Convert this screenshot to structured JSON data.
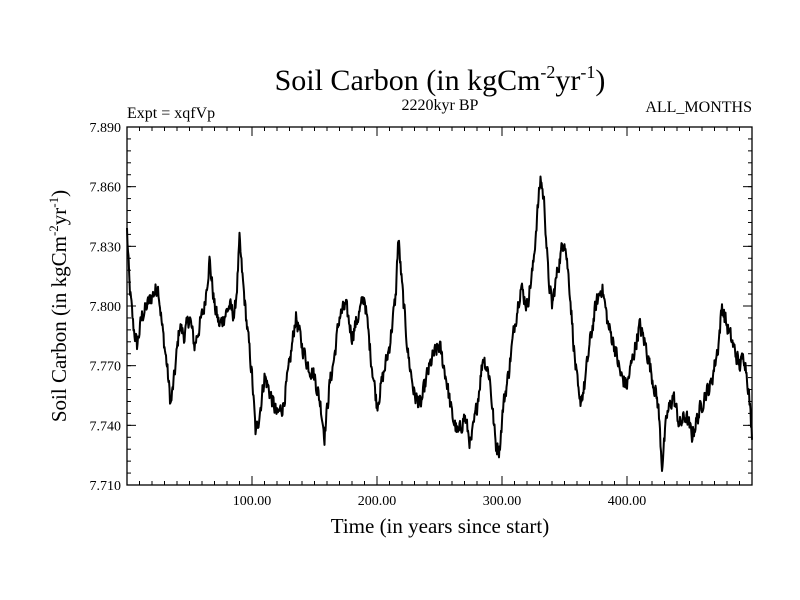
{
  "chart_data": {
    "type": "line",
    "title": {
      "main": "Soil Carbon (in kgCm",
      "sup1": "-2",
      "mid": "yr",
      "sup2": "-1",
      "end": ")"
    },
    "subtitle": "2220kyr BP",
    "left_label": "Expt = xqfVp",
    "right_label": "ALL_MONTHS",
    "xlabel": "Time (in years since start)",
    "ylabel": {
      "main": "Soil Carbon (in kgCm",
      "sup1": "-2",
      "mid": "yr",
      "sup2": "-1",
      "end": ")"
    },
    "xlim": [
      0,
      500
    ],
    "ylim": [
      7.71,
      7.89
    ],
    "xticks": [
      100,
      200,
      300,
      400
    ],
    "xtick_labels": [
      "100.00",
      "200.00",
      "300.00",
      "400.00"
    ],
    "yticks": [
      7.71,
      7.74,
      7.77,
      7.8,
      7.83,
      7.86,
      7.89
    ],
    "ytick_labels": [
      "7.710",
      "7.740",
      "7.770",
      "7.800",
      "7.830",
      "7.860",
      "7.890"
    ],
    "series": [
      {
        "name": "Soil Carbon",
        "anchors_x": [
          0,
          2,
          5,
          8,
          12,
          16,
          20,
          25,
          28,
          32,
          35,
          38,
          42,
          46,
          50,
          54,
          58,
          62,
          66,
          70,
          74,
          78,
          82,
          86,
          88,
          90,
          93,
          96,
          100,
          103,
          107,
          110,
          115,
          120,
          125,
          130,
          135,
          140,
          145,
          150,
          155,
          158,
          162,
          166,
          170,
          175,
          180,
          185,
          190,
          195,
          200,
          205,
          210,
          215,
          217,
          220,
          225,
          230,
          235,
          240,
          245,
          250,
          255,
          260,
          265,
          270,
          275,
          280,
          285,
          290,
          295,
          298,
          301,
          305,
          310,
          315,
          320,
          325,
          328,
          331,
          334,
          337,
          340,
          345,
          350,
          354,
          358,
          362,
          366,
          370,
          375,
          380,
          385,
          390,
          395,
          400,
          405,
          410,
          415,
          420,
          425,
          428,
          432,
          437,
          442,
          447,
          452,
          457,
          462,
          467,
          470,
          473,
          476,
          480,
          485,
          490,
          494,
          497,
          500
        ],
        "anchors_y": [
          7.838,
          7.81,
          7.79,
          7.78,
          7.795,
          7.8,
          7.805,
          7.81,
          7.79,
          7.77,
          7.75,
          7.765,
          7.79,
          7.785,
          7.795,
          7.78,
          7.79,
          7.8,
          7.823,
          7.8,
          7.79,
          7.795,
          7.8,
          7.795,
          7.81,
          7.832,
          7.81,
          7.79,
          7.765,
          7.735,
          7.75,
          7.765,
          7.755,
          7.745,
          7.75,
          7.77,
          7.795,
          7.78,
          7.77,
          7.765,
          7.75,
          7.735,
          7.76,
          7.775,
          7.795,
          7.8,
          7.785,
          7.795,
          7.805,
          7.775,
          7.75,
          7.765,
          7.78,
          7.805,
          7.835,
          7.81,
          7.775,
          7.755,
          7.75,
          7.765,
          7.775,
          7.78,
          7.765,
          7.745,
          7.735,
          7.745,
          7.73,
          7.75,
          7.775,
          7.765,
          7.73,
          7.728,
          7.75,
          7.765,
          7.79,
          7.81,
          7.8,
          7.82,
          7.845,
          7.865,
          7.85,
          7.815,
          7.8,
          7.82,
          7.835,
          7.81,
          7.775,
          7.75,
          7.76,
          7.78,
          7.8,
          7.81,
          7.79,
          7.78,
          7.765,
          7.76,
          7.775,
          7.79,
          7.78,
          7.765,
          7.75,
          7.72,
          7.745,
          7.755,
          7.74,
          7.745,
          7.735,
          7.745,
          7.755,
          7.76,
          7.77,
          7.78,
          7.8,
          7.79,
          7.78,
          7.77,
          7.775,
          7.76,
          7.735
        ],
        "noise_amplitude": 0.006
      }
    ]
  }
}
